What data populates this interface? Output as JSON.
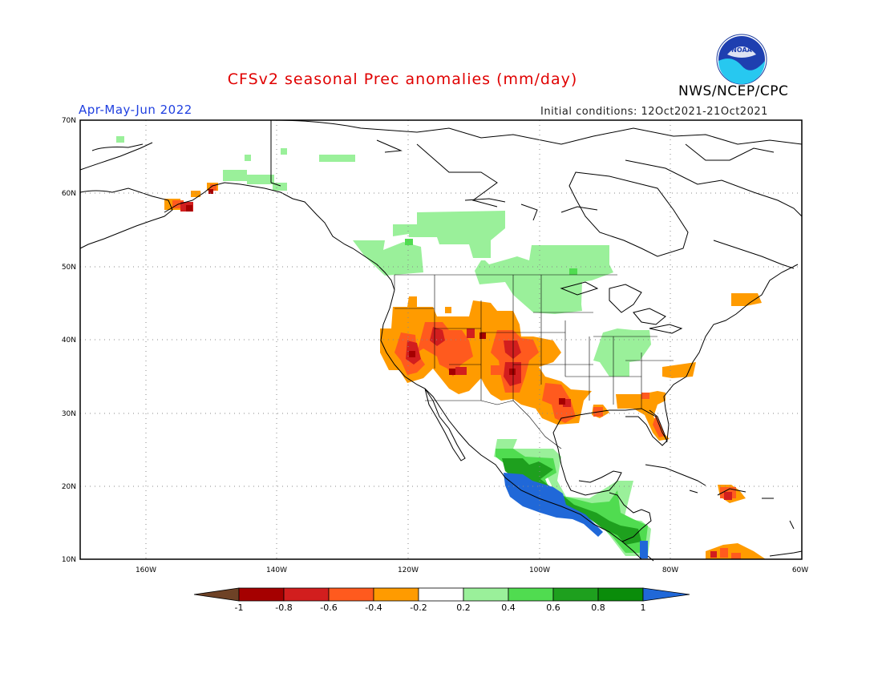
{
  "title": "CFSv2 seasonal Prec anomalies (mm/day)",
  "period": "Apr-May-Jun 2022",
  "initial_conditions": "Initial conditions: 12Oct2021-21Oct2021",
  "agency": "NWS/NCEP/CPC",
  "logo_text": "NOAA",
  "colors": {
    "title": "#e00000",
    "period": "#2040e0",
    "land_border": "#000000",
    "grid": "#888888"
  },
  "axes": {
    "lat_labels": [
      "70N",
      "60N",
      "50N",
      "40N",
      "30N",
      "20N",
      "10N"
    ],
    "lon_labels": [
      "160W",
      "140W",
      "120W",
      "100W",
      "80W",
      "60W"
    ]
  },
  "colorbar": {
    "labels": [
      "-1",
      "-0.8",
      "-0.6",
      "-0.4",
      "-0.2",
      "0.2",
      "0.4",
      "0.6",
      "0.8",
      "1"
    ],
    "colors": [
      "#6e4226",
      "#a50000",
      "#d21e1e",
      "#ff5a1e",
      "#ff9b00",
      "#ffffff",
      "#9af09a",
      "#50dc50",
      "#1ea01e",
      "#0a8c0a",
      "#2068d8"
    ]
  }
}
